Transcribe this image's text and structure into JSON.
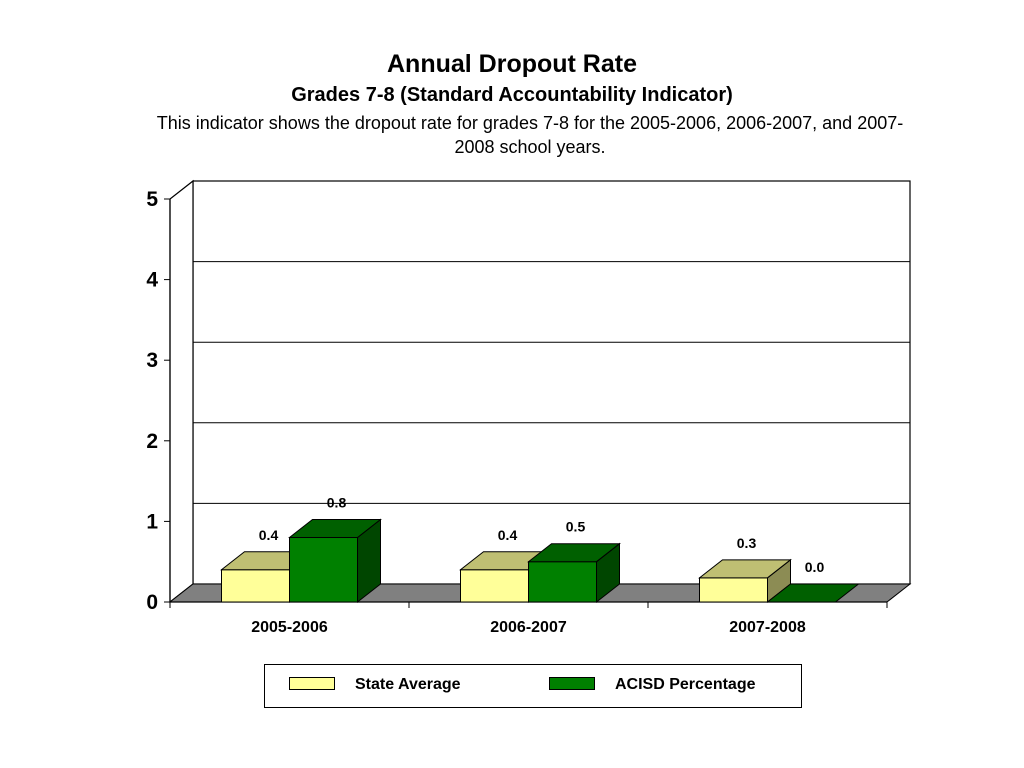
{
  "header": {
    "title": "Annual Dropout Rate",
    "subtitle": "Grades 7-8 (Standard Accountability Indicator)",
    "description": "This indicator shows the dropout rate for grades 7-8 for the 2005-2006, 2006-2007, and 2007-2008 school years."
  },
  "chart_data": {
    "type": "bar",
    "title": "Annual Dropout Rate",
    "subtitle": "Grades 7-8 (Standard Accountability Indicator)",
    "categories": [
      "2005-2006",
      "2006-2007",
      "2007-2008"
    ],
    "series": [
      {
        "name": "State Average",
        "values": [
          0.4,
          0.4,
          0.3
        ],
        "labels": [
          "0.4",
          "0.4",
          "0.3"
        ],
        "color": "#FFFF99"
      },
      {
        "name": "ACISD Percentage",
        "values": [
          0.8,
          0.5,
          0.0
        ],
        "labels": [
          "0.8",
          "0.5",
          "0.0"
        ],
        "color": "#008000"
      }
    ],
    "ylim": [
      0,
      5
    ],
    "yticks": [
      "0",
      "1",
      "2",
      "3",
      "4",
      "5"
    ],
    "grid": true,
    "three_d": true,
    "legend_position": "bottom",
    "colors": {
      "back_wall": "#FFFFFF",
      "floor": "#808080"
    }
  },
  "legend": {
    "items": [
      {
        "label": "State Average",
        "color": "#FFFF99"
      },
      {
        "label": "ACISD Percentage",
        "color": "#008000"
      }
    ]
  }
}
